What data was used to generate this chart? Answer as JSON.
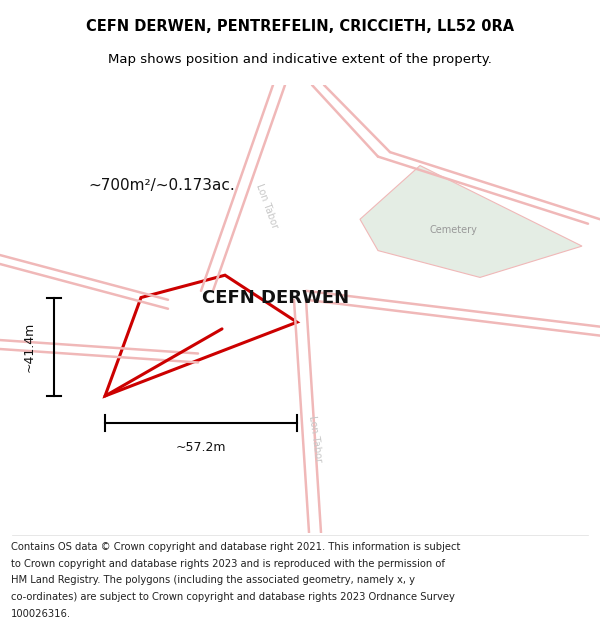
{
  "title_line1": "CEFN DERWEN, PENTREFELIN, CRICCIETH, LL52 0RA",
  "title_line2": "Map shows position and indicative extent of the property.",
  "footer_lines": [
    "Contains OS data © Crown copyright and database right 2021. This information is subject",
    "to Crown copyright and database rights 2023 and is reproduced with the permission of",
    "HM Land Registry. The polygons (including the associated geometry, namely x, y",
    "co-ordinates) are subject to Crown copyright and database rights 2023 Ordnance Survey",
    "100026316."
  ],
  "background_color": "#ffffff",
  "map_bg_color": "#f8f6f6",
  "property_label": "CEFN DERWEN",
  "cemetery_label": "Cemetery",
  "road_label_upper": "Lon Tabor",
  "road_label_lower": "Lon Tabor",
  "area_label": "~700m²/~0.173ac.",
  "width_label": "~57.2m",
  "height_label": "~41.4m",
  "road_color": "#f0b8b8",
  "cemetery_color": "#e4ede4",
  "plot_line_color": "#cc0000",
  "dimension_line_color": "#000000"
}
